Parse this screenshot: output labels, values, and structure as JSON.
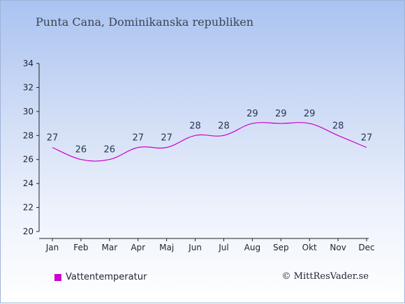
{
  "header": {
    "title": "Punta Cana, Dominikanska republiken"
  },
  "legend": {
    "label": "Vattentemperatur",
    "color": "#cc00cc"
  },
  "footer": {
    "credit": "© MittResVader.se"
  },
  "chart_data": {
    "type": "line",
    "title": "Punta Cana, Dominikanska republiken",
    "xlabel": "",
    "ylabel": "",
    "categories": [
      "Jan",
      "Feb",
      "Mar",
      "Apr",
      "Maj",
      "Jun",
      "Jul",
      "Aug",
      "Sep",
      "Okt",
      "Nov",
      "Dec"
    ],
    "series": [
      {
        "name": "Vattentemperatur",
        "values": [
          27,
          26,
          26,
          27,
          27,
          28,
          28,
          29,
          29,
          29,
          28,
          27
        ],
        "color": "#cc00cc"
      }
    ],
    "ylim": [
      20,
      34
    ],
    "yticks": [
      20,
      22,
      24,
      26,
      28,
      30,
      32,
      34
    ],
    "grid": false,
    "legend_position": "bottom-left"
  }
}
